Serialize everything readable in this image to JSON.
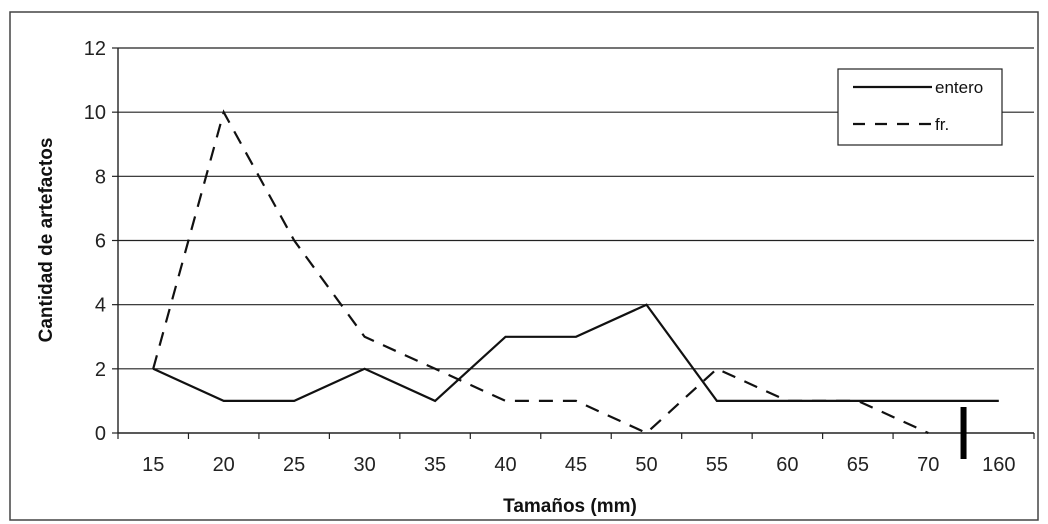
{
  "chart_data": {
    "type": "line",
    "title": "",
    "xlabel": "Tamaños (mm)",
    "ylabel": "Cantidad de artefactos",
    "categories": [
      "15",
      "20",
      "25",
      "30",
      "35",
      "40",
      "45",
      "50",
      "55",
      "60",
      "65",
      "70",
      "160"
    ],
    "ylim": [
      0,
      12
    ],
    "yticks": [
      0,
      2,
      4,
      6,
      8,
      10,
      12
    ],
    "grid": true,
    "legend_position": "top-right",
    "series": [
      {
        "name": "entero",
        "line_style": "solid",
        "color": "#111111",
        "values": [
          2,
          1,
          1,
          2,
          1,
          3,
          3,
          4,
          1,
          1,
          1,
          1,
          1
        ]
      },
      {
        "name": "fr.",
        "line_style": "dashed",
        "color": "#111111",
        "values": [
          2,
          10,
          6,
          3,
          2,
          1,
          1,
          0,
          2,
          1,
          1,
          0,
          null
        ]
      }
    ]
  }
}
